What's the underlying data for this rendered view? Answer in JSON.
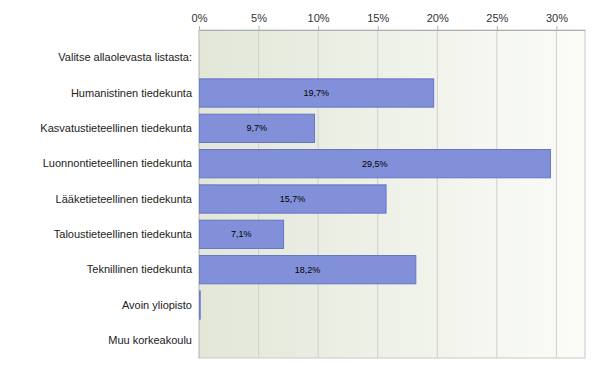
{
  "chart_data": {
    "type": "bar",
    "orientation": "horizontal",
    "categories": [
      "Valitse allaolevasta listasta:",
      "Humanistinen tiedekunta",
      "Kasvatustieteellinen tiedekunta",
      "Luonnontieteellinen tiedekunta",
      "Lääketieteellinen tiedekunta",
      "Taloustieteellinen tiedekunta",
      "Teknillinen tiedekunta",
      "Avoin yliopisto",
      "Muu korkeakoulu"
    ],
    "values": [
      null,
      19.7,
      9.7,
      29.5,
      15.7,
      7.1,
      18.2,
      0.1,
      0
    ],
    "value_labels": [
      null,
      "19,7%",
      "9,7%",
      "29,5%",
      "15,7%",
      "7,1%",
      "18,2%",
      null,
      null
    ],
    "data_labels": true,
    "color": "#8190d8",
    "xlim": [
      0,
      32.4
    ],
    "xticks": [
      {
        "value": 0,
        "label": "0%"
      },
      {
        "value": 5,
        "label": "5%"
      },
      {
        "value": 10,
        "label": "10%"
      },
      {
        "value": 15,
        "label": "15%"
      },
      {
        "value": 20,
        "label": "20%"
      },
      {
        "value": 25,
        "label": "25%"
      },
      {
        "value": 30,
        "label": "30%"
      }
    ],
    "grid": true
  }
}
